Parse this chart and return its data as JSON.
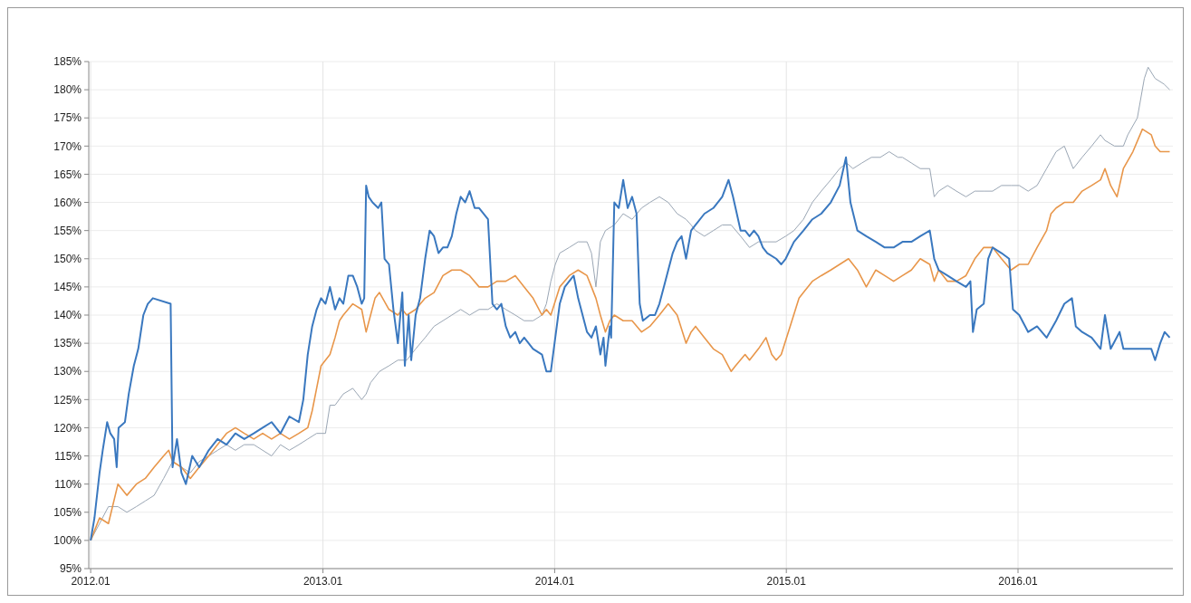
{
  "chart_data": {
    "type": "line",
    "xlim": [
      "2011-12-29",
      "2016-09-01"
    ],
    "xticks": [
      {
        "value": "2012-01",
        "label": "2012.01"
      },
      {
        "value": "2013-01",
        "label": "2013.01"
      },
      {
        "value": "2014-01",
        "label": "2014.01"
      },
      {
        "value": "2015-01",
        "label": "2015.01"
      },
      {
        "value": "2016-01",
        "label": "2016.01"
      }
    ],
    "ylim": [
      95,
      185
    ],
    "yticks": [
      {
        "value": 95,
        "label": "95%"
      },
      {
        "value": 100,
        "label": "100%"
      },
      {
        "value": 105,
        "label": "105%"
      },
      {
        "value": 110,
        "label": "110%"
      },
      {
        "value": 115,
        "label": "115%"
      },
      {
        "value": 120,
        "label": "120%"
      },
      {
        "value": 125,
        "label": "125%"
      },
      {
        "value": 130,
        "label": "130%"
      },
      {
        "value": 135,
        "label": "135%"
      },
      {
        "value": 140,
        "label": "140%"
      },
      {
        "value": 145,
        "label": "145%"
      },
      {
        "value": 150,
        "label": "150%"
      },
      {
        "value": 155,
        "label": "155%"
      },
      {
        "value": 160,
        "label": "160%"
      },
      {
        "value": 165,
        "label": "165%"
      },
      {
        "value": 170,
        "label": "170%"
      },
      {
        "value": 175,
        "label": "175%"
      },
      {
        "value": 180,
        "label": "180%"
      },
      {
        "value": 185,
        "label": "185%"
      }
    ],
    "grid": true,
    "series": [
      {
        "color": "#9aa6b4",
        "x": [
          "2012-01-01",
          "2012-01-15",
          "2012-01-29",
          "2012-02-13",
          "2012-02-27",
          "2012-03-13",
          "2012-03-27",
          "2012-04-10",
          "2012-04-25",
          "2012-05-09",
          "2012-05-23",
          "2012-06-06",
          "2012-06-20",
          "2012-07-05",
          "2012-07-19",
          "2012-08-02",
          "2012-08-16",
          "2012-08-30",
          "2012-09-14",
          "2012-09-28",
          "2012-10-12",
          "2012-10-26",
          "2012-11-09",
          "2012-11-24",
          "2012-12-08",
          "2012-12-22",
          "2013-01-05",
          "2013-01-12",
          "2013-01-20",
          "2013-02-02",
          "2013-02-17",
          "2013-03-03",
          "2013-03-10",
          "2013-03-17",
          "2013-03-31",
          "2013-04-15",
          "2013-04-29",
          "2013-05-13",
          "2013-05-27",
          "2013-06-11",
          "2013-06-25",
          "2013-07-09",
          "2013-07-23",
          "2013-08-06",
          "2013-08-20",
          "2013-09-04",
          "2013-09-18",
          "2013-10-02",
          "2013-10-16",
          "2013-10-31",
          "2013-11-14",
          "2013-11-28",
          "2013-12-12",
          "2013-12-19",
          "2013-12-26",
          "2014-01-02",
          "2014-01-09",
          "2014-01-24",
          "2014-02-07",
          "2014-02-21",
          "2014-02-28",
          "2014-03-07",
          "2014-03-14",
          "2014-03-22",
          "2014-04-05",
          "2014-04-19",
          "2014-05-03",
          "2014-05-18",
          "2014-05-31",
          "2014-06-15",
          "2014-06-29",
          "2014-07-13",
          "2014-07-27",
          "2014-08-04",
          "2014-08-11",
          "2014-08-25",
          "2014-09-08",
          "2014-09-22",
          "2014-10-06",
          "2014-10-21",
          "2014-11-04",
          "2014-11-18",
          "2014-12-02",
          "2014-12-16",
          "2014-12-31",
          "2015-01-13",
          "2015-01-28",
          "2015-02-11",
          "2015-02-25",
          "2015-03-12",
          "2015-03-26",
          "2015-04-06",
          "2015-04-16",
          "2015-04-30",
          "2015-05-15",
          "2015-05-29",
          "2015-06-12",
          "2015-06-26",
          "2015-07-03",
          "2015-07-17",
          "2015-07-31",
          "2015-08-15",
          "2015-08-22",
          "2015-08-29",
          "2015-09-12",
          "2015-09-26",
          "2015-10-11",
          "2015-10-25",
          "2015-11-08",
          "2015-11-22",
          "2015-12-06",
          "2015-12-21",
          "2016-01-03",
          "2016-01-17",
          "2016-01-31",
          "2016-02-15",
          "2016-03-01",
          "2016-03-14",
          "2016-03-28",
          "2016-04-11",
          "2016-04-26",
          "2016-05-10",
          "2016-05-17",
          "2016-06-01",
          "2016-06-15",
          "2016-06-22",
          "2016-07-07",
          "2016-07-18",
          "2016-07-24",
          "2016-08-04",
          "2016-08-18",
          "2016-08-27"
        ],
        "values": [
          100,
          103,
          106,
          106,
          105,
          106,
          107,
          108,
          111,
          114,
          113,
          112,
          114,
          115,
          116,
          117,
          116,
          117,
          117,
          116,
          115,
          117,
          116,
          117,
          118,
          119,
          119,
          124,
          124,
          126,
          127,
          125,
          126,
          128,
          130,
          131,
          132,
          132,
          134,
          136,
          138,
          139,
          140,
          141,
          140,
          141,
          141,
          142,
          141,
          140,
          139,
          139,
          140,
          142,
          146,
          149,
          151,
          152,
          153,
          153,
          151,
          145,
          153,
          155,
          156,
          158,
          157,
          159,
          160,
          161,
          160,
          158,
          157,
          156,
          155,
          154,
          155,
          156,
          156,
          154,
          152,
          153,
          153,
          153,
          154,
          155,
          157,
          160,
          162,
          164,
          166,
          167,
          166,
          167,
          168,
          168,
          169,
          168,
          168,
          167,
          166,
          166,
          161,
          162,
          163,
          162,
          161,
          162,
          162,
          162,
          163,
          163,
          163,
          162,
          163,
          166,
          169,
          170,
          166,
          168,
          170,
          172,
          171,
          170,
          170,
          172,
          175,
          182,
          184,
          182,
          181,
          180
        ]
      },
      {
        "color": "#e8964a",
        "x": [
          "2012-01-01",
          "2012-01-15",
          "2012-01-29",
          "2012-02-13",
          "2012-02-27",
          "2012-03-13",
          "2012-03-27",
          "2012-04-10",
          "2012-04-25",
          "2012-05-03",
          "2012-05-09",
          "2012-05-23",
          "2012-06-06",
          "2012-06-20",
          "2012-07-05",
          "2012-07-19",
          "2012-08-02",
          "2012-08-16",
          "2012-08-30",
          "2012-09-14",
          "2012-09-28",
          "2012-10-12",
          "2012-10-26",
          "2012-11-09",
          "2012-11-24",
          "2012-12-08",
          "2012-12-15",
          "2012-12-22",
          "2012-12-29",
          "2013-01-05",
          "2013-01-12",
          "2013-01-20",
          "2013-01-27",
          "2013-02-02",
          "2013-02-17",
          "2013-03-03",
          "2013-03-10",
          "2013-03-17",
          "2013-03-24",
          "2013-03-31",
          "2013-04-15",
          "2013-04-29",
          "2013-05-06",
          "2013-05-13",
          "2013-05-27",
          "2013-06-11",
          "2013-06-25",
          "2013-07-09",
          "2013-07-23",
          "2013-08-06",
          "2013-08-20",
          "2013-09-04",
          "2013-09-18",
          "2013-10-02",
          "2013-10-16",
          "2013-10-31",
          "2013-11-14",
          "2013-11-28",
          "2013-12-12",
          "2013-12-19",
          "2013-12-26",
          "2014-01-09",
          "2014-01-24",
          "2014-02-07",
          "2014-02-21",
          "2014-02-28",
          "2014-03-07",
          "2014-03-14",
          "2014-03-22",
          "2014-03-29",
          "2014-04-05",
          "2014-04-19",
          "2014-05-03",
          "2014-05-18",
          "2014-05-31",
          "2014-06-15",
          "2014-06-29",
          "2014-07-13",
          "2014-07-27",
          "2014-08-04",
          "2014-08-11",
          "2014-08-25",
          "2014-09-08",
          "2014-09-22",
          "2014-10-06",
          "2014-10-13",
          "2014-10-28",
          "2014-11-04",
          "2014-11-18",
          "2014-11-30",
          "2014-12-09",
          "2014-12-16",
          "2014-12-24",
          "2015-01-07",
          "2015-01-21",
          "2015-01-28",
          "2015-02-11",
          "2015-02-25",
          "2015-03-12",
          "2015-03-26",
          "2015-04-09",
          "2015-04-23",
          "2015-05-07",
          "2015-05-22",
          "2015-06-05",
          "2015-06-19",
          "2015-07-03",
          "2015-07-17",
          "2015-07-31",
          "2015-08-15",
          "2015-08-22",
          "2015-08-29",
          "2015-09-12",
          "2015-09-26",
          "2015-10-11",
          "2015-10-25",
          "2015-11-08",
          "2015-11-22",
          "2015-12-06",
          "2015-12-21",
          "2016-01-03",
          "2016-01-17",
          "2016-01-31",
          "2016-02-15",
          "2016-02-22",
          "2016-03-01",
          "2016-03-14",
          "2016-03-28",
          "2016-04-11",
          "2016-04-26",
          "2016-05-10",
          "2016-05-17",
          "2016-05-26",
          "2016-06-05",
          "2016-06-09",
          "2016-06-15",
          "2016-06-30",
          "2016-07-15",
          "2016-07-29",
          "2016-08-04",
          "2016-08-12",
          "2016-08-27"
        ],
        "values": [
          100,
          104,
          103,
          110,
          108,
          110,
          111,
          113,
          115,
          116,
          114,
          113,
          111,
          113,
          115,
          117,
          119,
          120,
          119,
          118,
          119,
          118,
          119,
          118,
          119,
          120,
          123,
          127,
          131,
          132,
          133,
          136,
          139,
          140,
          142,
          141,
          137,
          140,
          143,
          144,
          141,
          140,
          141,
          140,
          141,
          143,
          144,
          147,
          148,
          148,
          147,
          145,
          145,
          146,
          146,
          147,
          145,
          143,
          140,
          141,
          140,
          145,
          147,
          148,
          147,
          145,
          143,
          140,
          137,
          139,
          140,
          139,
          139,
          137,
          138,
          140,
          142,
          140,
          135,
          137,
          138,
          136,
          134,
          133,
          130,
          131,
          133,
          132,
          134,
          136,
          133,
          132,
          133,
          138,
          143,
          144,
          146,
          147,
          148,
          149,
          150,
          148,
          145,
          148,
          147,
          146,
          147,
          148,
          150,
          149,
          146,
          148,
          146,
          146,
          147,
          150,
          152,
          152,
          150,
          148,
          149,
          149,
          152,
          155,
          158,
          159,
          160,
          160,
          162,
          163,
          164,
          166,
          163,
          161,
          163,
          166,
          169,
          173,
          172,
          170,
          169,
          169
        ]
      },
      {
        "color": "#3a78bf",
        "x": [
          "2012-01-01",
          "2012-01-07",
          "2012-01-15",
          "2012-01-20",
          "2012-01-27",
          "2012-02-01",
          "2012-02-07",
          "2012-02-11",
          "2012-02-14",
          "2012-02-24",
          "2012-03-01",
          "2012-03-09",
          "2012-03-16",
          "2012-03-24",
          "2012-03-31",
          "2012-04-08",
          "2012-05-06",
          "2012-05-09",
          "2012-05-16",
          "2012-05-23",
          "2012-05-30",
          "2012-06-09",
          "2012-06-20",
          "2012-07-05",
          "2012-07-19",
          "2012-08-02",
          "2012-08-16",
          "2012-08-30",
          "2012-09-14",
          "2012-09-28",
          "2012-10-12",
          "2012-10-26",
          "2012-11-09",
          "2012-11-24",
          "2012-12-01",
          "2012-12-08",
          "2012-12-15",
          "2012-12-22",
          "2012-12-29",
          "2013-01-05",
          "2013-01-12",
          "2013-01-20",
          "2013-01-27",
          "2013-02-02",
          "2013-02-10",
          "2013-02-17",
          "2013-02-24",
          "2013-03-03",
          "2013-03-07",
          "2013-03-10",
          "2013-03-14",
          "2013-03-20",
          "2013-03-29",
          "2013-04-03",
          "2013-04-08",
          "2013-04-15",
          "2013-04-22",
          "2013-04-29",
          "2013-05-06",
          "2013-05-10",
          "2013-05-16",
          "2013-05-20",
          "2013-05-27",
          "2013-06-03",
          "2013-06-11",
          "2013-06-18",
          "2013-06-25",
          "2013-07-02",
          "2013-07-09",
          "2013-07-16",
          "2013-07-23",
          "2013-07-30",
          "2013-08-06",
          "2013-08-13",
          "2013-08-20",
          "2013-08-28",
          "2013-09-04",
          "2013-09-18",
          "2013-09-25",
          "2013-10-02",
          "2013-10-09",
          "2013-10-16",
          "2013-10-23",
          "2013-10-31",
          "2013-11-07",
          "2013-11-14",
          "2013-11-28",
          "2013-12-12",
          "2013-12-19",
          "2013-12-26",
          "2014-01-02",
          "2014-01-09",
          "2014-01-17",
          "2014-01-24",
          "2014-01-31",
          "2014-02-07",
          "2014-02-14",
          "2014-02-21",
          "2014-02-28",
          "2014-03-07",
          "2014-03-14",
          "2014-03-19",
          "2014-03-22",
          "2014-03-29",
          "2014-03-31",
          "2014-04-05",
          "2014-04-12",
          "2014-04-19",
          "2014-04-26",
          "2014-05-03",
          "2014-05-10",
          "2014-05-15",
          "2014-05-20",
          "2014-05-31",
          "2014-06-08",
          "2014-06-15",
          "2014-06-22",
          "2014-06-29",
          "2014-07-06",
          "2014-07-13",
          "2014-07-20",
          "2014-07-27",
          "2014-08-04",
          "2014-08-11",
          "2014-08-25",
          "2014-09-08",
          "2014-09-22",
          "2014-10-02",
          "2014-10-09",
          "2014-10-13",
          "2014-10-21",
          "2014-10-28",
          "2014-11-04",
          "2014-11-11",
          "2014-11-18",
          "2014-11-25",
          "2014-12-02",
          "2014-12-16",
          "2014-12-24",
          "2014-12-31",
          "2015-01-13",
          "2015-01-28",
          "2015-02-11",
          "2015-02-25",
          "2015-03-12",
          "2015-03-26",
          "2015-04-05",
          "2015-04-12",
          "2015-04-23",
          "2015-05-07",
          "2015-05-22",
          "2015-06-05",
          "2015-06-19",
          "2015-07-03",
          "2015-07-17",
          "2015-07-31",
          "2015-08-15",
          "2015-08-22",
          "2015-08-29",
          "2015-09-12",
          "2015-09-26",
          "2015-10-11",
          "2015-10-18",
          "2015-10-22",
          "2015-10-28",
          "2015-11-08",
          "2015-11-15",
          "2015-11-22",
          "2015-12-06",
          "2015-12-18",
          "2015-12-24",
          "2016-01-03",
          "2016-01-17",
          "2016-01-31",
          "2016-02-15",
          "2016-03-01",
          "2016-03-14",
          "2016-03-26",
          "2016-04-01",
          "2016-04-11",
          "2016-04-26",
          "2016-05-10",
          "2016-05-17",
          "2016-05-26",
          "2016-06-09",
          "2016-06-15",
          "2016-07-07",
          "2016-07-29",
          "2016-08-04",
          "2016-08-12",
          "2016-08-19",
          "2016-08-27"
        ],
        "values": [
          100,
          104,
          112,
          116,
          121,
          119,
          118,
          113,
          120,
          121,
          126,
          131,
          134,
          140,
          142,
          143,
          142,
          113,
          118,
          112,
          110,
          115,
          113,
          116,
          118,
          117,
          119,
          118,
          119,
          120,
          121,
          119,
          122,
          121,
          125,
          133,
          138,
          141,
          143,
          142,
          145,
          141,
          143,
          142,
          147,
          147,
          145,
          142,
          143,
          163,
          161,
          160,
          159,
          160,
          150,
          149,
          141,
          135,
          144,
          131,
          140,
          132,
          140,
          143,
          150,
          155,
          154,
          151,
          152,
          152,
          154,
          158,
          161,
          160,
          162,
          159,
          159,
          157,
          142,
          141,
          142,
          138,
          136,
          137,
          135,
          136,
          134,
          133,
          130,
          130,
          136,
          142,
          145,
          146,
          147,
          143,
          140,
          137,
          136,
          138,
          133,
          136,
          131,
          138,
          136,
          160,
          159,
          164,
          159,
          161,
          158,
          142,
          139,
          140,
          140,
          142,
          145,
          148,
          151,
          153,
          154,
          150,
          155,
          156,
          158,
          159,
          161,
          164,
          161,
          159,
          155,
          155,
          154,
          155,
          154,
          152,
          151,
          150,
          149,
          150,
          153,
          155,
          157,
          158,
          160,
          163,
          168,
          160,
          155,
          154,
          153,
          152,
          152,
          153,
          153,
          154,
          155,
          150,
          148,
          147,
          146,
          145,
          146,
          137,
          141,
          142,
          150,
          152,
          151,
          150,
          141,
          140,
          137,
          138,
          136,
          139,
          142,
          143,
          138,
          137,
          136,
          134,
          140,
          134,
          137,
          134,
          134,
          134,
          132,
          135,
          137,
          136
        ]
      }
    ]
  }
}
